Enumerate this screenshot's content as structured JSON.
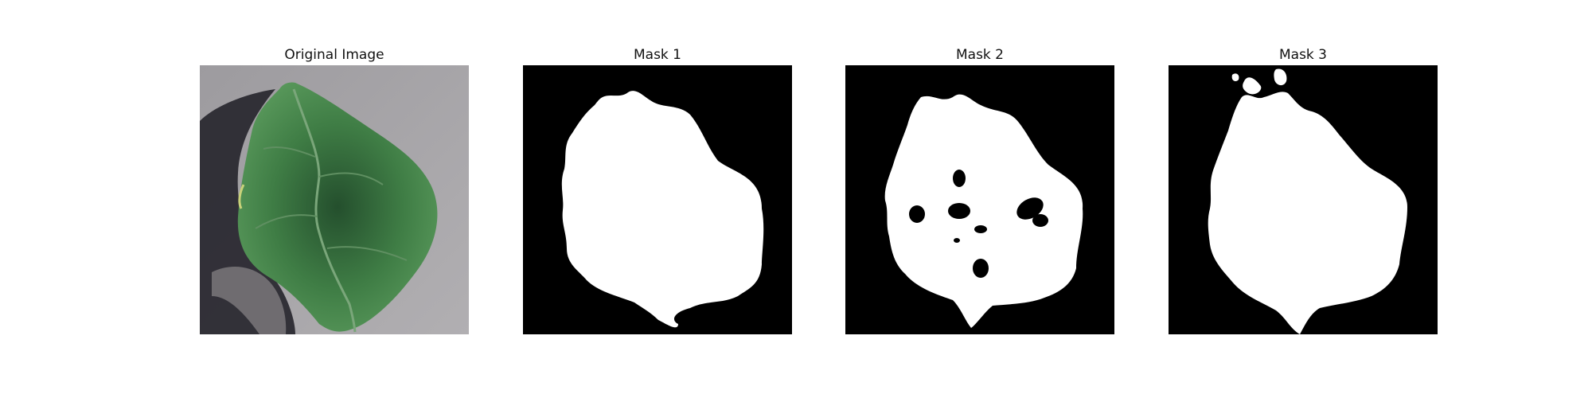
{
  "panels": [
    {
      "title": "Original Image"
    },
    {
      "title": "Mask 1"
    },
    {
      "title": "Mask 2"
    },
    {
      "title": "Mask 3"
    }
  ],
  "colors": {
    "mask_background": "#000000",
    "mask_foreground": "#ffffff",
    "leaf_green": "#3f7d45",
    "leaf_dark": "#1f4d28",
    "backdrop_gray": "#a3a1a4",
    "shadow": "#2b2a32"
  }
}
